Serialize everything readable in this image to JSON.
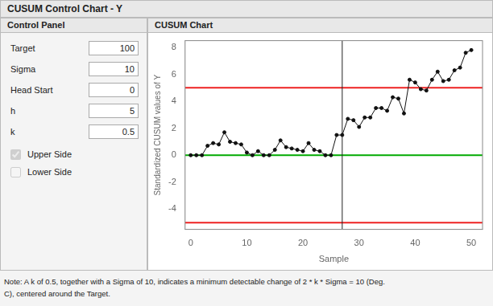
{
  "chart_data": {
    "type": "line",
    "title": "CUSUM Control Chart - Y",
    "subtitle": "CUSUM Chart",
    "panel": {
      "title": "Control Panel",
      "params": [
        {
          "label": "Target",
          "value": 100
        },
        {
          "label": "Sigma",
          "value": 10
        },
        {
          "label": "Head Start",
          "value": 0
        },
        {
          "label": "h",
          "value": 5
        },
        {
          "label": "k",
          "value": 0.5
        }
      ],
      "checkboxes": [
        {
          "label": "Upper Side",
          "checked": true
        },
        {
          "label": "Lower Side",
          "checked": false
        }
      ]
    },
    "notes": [
      "Note: A k of 0.5, together with a Sigma of 10, indicates a minimum detectable change of 2 * k * Sigma = 10 (Deg.",
      "C), centered around the Target."
    ],
    "x": [
      0,
      1,
      2,
      3,
      4,
      5,
      6,
      7,
      8,
      9,
      10,
      11,
      12,
      13,
      14,
      15,
      16,
      17,
      18,
      19,
      20,
      21,
      22,
      23,
      24,
      25,
      26,
      27,
      28,
      29,
      30,
      31,
      32,
      33,
      34,
      35,
      36,
      37,
      38,
      39,
      40,
      41,
      42,
      43,
      44,
      45,
      46,
      47,
      48,
      49,
      50
    ],
    "values": [
      0.0,
      0.0,
      0.0,
      0.7,
      0.9,
      0.8,
      1.7,
      1.0,
      0.9,
      0.8,
      0.2,
      0.0,
      0.3,
      0.0,
      0.0,
      0.4,
      1.1,
      0.6,
      0.5,
      0.4,
      0.3,
      0.9,
      0.4,
      0.3,
      0.0,
      0.0,
      1.5,
      1.5,
      2.7,
      2.6,
      2.1,
      2.8,
      2.8,
      3.5,
      3.5,
      3.3,
      4.3,
      4.2,
      3.1,
      5.6,
      5.4,
      4.9,
      4.8,
      5.6,
      6.2,
      5.5,
      5.6,
      6.3,
      6.5,
      7.6,
      7.8
    ],
    "color": "#111111",
    "marker": "circle",
    "annotations": [
      {
        "type": "hline",
        "y": 5.0,
        "color": "#EE2222"
      },
      {
        "type": "hline",
        "y": -5.0,
        "color": "#EE2222"
      },
      {
        "type": "hline",
        "y": 0.0,
        "color": "#00AA00"
      },
      {
        "type": "vline",
        "x": 27,
        "color": "#222222"
      }
    ],
    "xlim": [
      -1,
      52
    ],
    "ylim": [
      -5.5,
      8.5
    ],
    "xticks": [
      0,
      10,
      20,
      30,
      40,
      50
    ],
    "yticks": [
      -4,
      -2,
      0,
      2,
      4,
      6,
      8
    ],
    "xlabel": "Sample",
    "ylabel": "Standardized CUSUM values of Y",
    "grid": false
  }
}
